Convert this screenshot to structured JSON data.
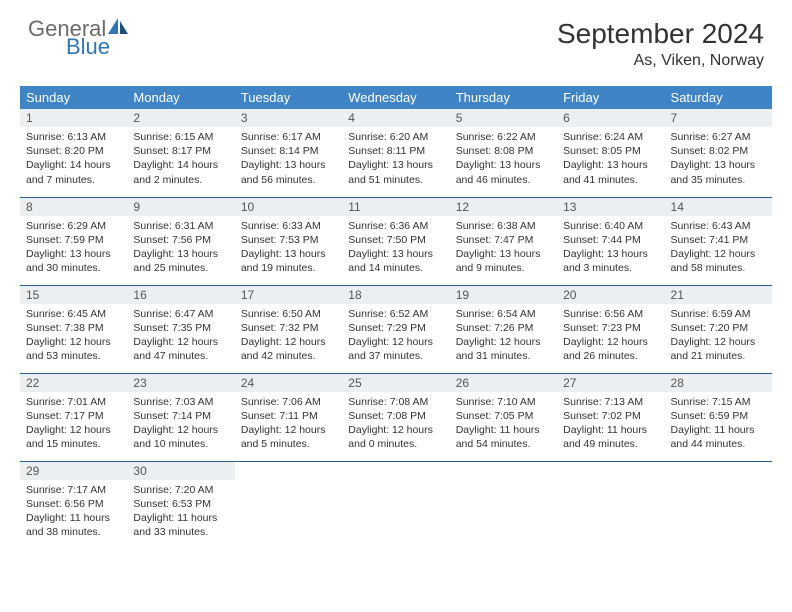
{
  "brand": {
    "line1": "General",
    "line2": "Blue"
  },
  "title": "September 2024",
  "location": "As, Viken, Norway",
  "colors": {
    "header_bg": "#3f85c6",
    "header_text": "#ffffff",
    "row_divider": "#2e5f8a",
    "daynum_bg": "#eceff1",
    "body_text": "#333333",
    "logo_gray": "#6b6b6b",
    "logo_blue": "#2e75b6",
    "page_bg": "#ffffff"
  },
  "typography": {
    "title_fontsize": 28,
    "location_fontsize": 16,
    "weekday_fontsize": 13,
    "daynum_fontsize": 12,
    "body_fontsize": 10.5
  },
  "weekdays": [
    "Sunday",
    "Monday",
    "Tuesday",
    "Wednesday",
    "Thursday",
    "Friday",
    "Saturday"
  ],
  "weeks": [
    [
      {
        "n": "1",
        "sr": "Sunrise: 6:13 AM",
        "ss": "Sunset: 8:20 PM",
        "d1": "Daylight: 14 hours",
        "d2": "and 7 minutes."
      },
      {
        "n": "2",
        "sr": "Sunrise: 6:15 AM",
        "ss": "Sunset: 8:17 PM",
        "d1": "Daylight: 14 hours",
        "d2": "and 2 minutes."
      },
      {
        "n": "3",
        "sr": "Sunrise: 6:17 AM",
        "ss": "Sunset: 8:14 PM",
        "d1": "Daylight: 13 hours",
        "d2": "and 56 minutes."
      },
      {
        "n": "4",
        "sr": "Sunrise: 6:20 AM",
        "ss": "Sunset: 8:11 PM",
        "d1": "Daylight: 13 hours",
        "d2": "and 51 minutes."
      },
      {
        "n": "5",
        "sr": "Sunrise: 6:22 AM",
        "ss": "Sunset: 8:08 PM",
        "d1": "Daylight: 13 hours",
        "d2": "and 46 minutes."
      },
      {
        "n": "6",
        "sr": "Sunrise: 6:24 AM",
        "ss": "Sunset: 8:05 PM",
        "d1": "Daylight: 13 hours",
        "d2": "and 41 minutes."
      },
      {
        "n": "7",
        "sr": "Sunrise: 6:27 AM",
        "ss": "Sunset: 8:02 PM",
        "d1": "Daylight: 13 hours",
        "d2": "and 35 minutes."
      }
    ],
    [
      {
        "n": "8",
        "sr": "Sunrise: 6:29 AM",
        "ss": "Sunset: 7:59 PM",
        "d1": "Daylight: 13 hours",
        "d2": "and 30 minutes."
      },
      {
        "n": "9",
        "sr": "Sunrise: 6:31 AM",
        "ss": "Sunset: 7:56 PM",
        "d1": "Daylight: 13 hours",
        "d2": "and 25 minutes."
      },
      {
        "n": "10",
        "sr": "Sunrise: 6:33 AM",
        "ss": "Sunset: 7:53 PM",
        "d1": "Daylight: 13 hours",
        "d2": "and 19 minutes."
      },
      {
        "n": "11",
        "sr": "Sunrise: 6:36 AM",
        "ss": "Sunset: 7:50 PM",
        "d1": "Daylight: 13 hours",
        "d2": "and 14 minutes."
      },
      {
        "n": "12",
        "sr": "Sunrise: 6:38 AM",
        "ss": "Sunset: 7:47 PM",
        "d1": "Daylight: 13 hours",
        "d2": "and 9 minutes."
      },
      {
        "n": "13",
        "sr": "Sunrise: 6:40 AM",
        "ss": "Sunset: 7:44 PM",
        "d1": "Daylight: 13 hours",
        "d2": "and 3 minutes."
      },
      {
        "n": "14",
        "sr": "Sunrise: 6:43 AM",
        "ss": "Sunset: 7:41 PM",
        "d1": "Daylight: 12 hours",
        "d2": "and 58 minutes."
      }
    ],
    [
      {
        "n": "15",
        "sr": "Sunrise: 6:45 AM",
        "ss": "Sunset: 7:38 PM",
        "d1": "Daylight: 12 hours",
        "d2": "and 53 minutes."
      },
      {
        "n": "16",
        "sr": "Sunrise: 6:47 AM",
        "ss": "Sunset: 7:35 PM",
        "d1": "Daylight: 12 hours",
        "d2": "and 47 minutes."
      },
      {
        "n": "17",
        "sr": "Sunrise: 6:50 AM",
        "ss": "Sunset: 7:32 PM",
        "d1": "Daylight: 12 hours",
        "d2": "and 42 minutes."
      },
      {
        "n": "18",
        "sr": "Sunrise: 6:52 AM",
        "ss": "Sunset: 7:29 PM",
        "d1": "Daylight: 12 hours",
        "d2": "and 37 minutes."
      },
      {
        "n": "19",
        "sr": "Sunrise: 6:54 AM",
        "ss": "Sunset: 7:26 PM",
        "d1": "Daylight: 12 hours",
        "d2": "and 31 minutes."
      },
      {
        "n": "20",
        "sr": "Sunrise: 6:56 AM",
        "ss": "Sunset: 7:23 PM",
        "d1": "Daylight: 12 hours",
        "d2": "and 26 minutes."
      },
      {
        "n": "21",
        "sr": "Sunrise: 6:59 AM",
        "ss": "Sunset: 7:20 PM",
        "d1": "Daylight: 12 hours",
        "d2": "and 21 minutes."
      }
    ],
    [
      {
        "n": "22",
        "sr": "Sunrise: 7:01 AM",
        "ss": "Sunset: 7:17 PM",
        "d1": "Daylight: 12 hours",
        "d2": "and 15 minutes."
      },
      {
        "n": "23",
        "sr": "Sunrise: 7:03 AM",
        "ss": "Sunset: 7:14 PM",
        "d1": "Daylight: 12 hours",
        "d2": "and 10 minutes."
      },
      {
        "n": "24",
        "sr": "Sunrise: 7:06 AM",
        "ss": "Sunset: 7:11 PM",
        "d1": "Daylight: 12 hours",
        "d2": "and 5 minutes."
      },
      {
        "n": "25",
        "sr": "Sunrise: 7:08 AM",
        "ss": "Sunset: 7:08 PM",
        "d1": "Daylight: 12 hours",
        "d2": "and 0 minutes."
      },
      {
        "n": "26",
        "sr": "Sunrise: 7:10 AM",
        "ss": "Sunset: 7:05 PM",
        "d1": "Daylight: 11 hours",
        "d2": "and 54 minutes."
      },
      {
        "n": "27",
        "sr": "Sunrise: 7:13 AM",
        "ss": "Sunset: 7:02 PM",
        "d1": "Daylight: 11 hours",
        "d2": "and 49 minutes."
      },
      {
        "n": "28",
        "sr": "Sunrise: 7:15 AM",
        "ss": "Sunset: 6:59 PM",
        "d1": "Daylight: 11 hours",
        "d2": "and 44 minutes."
      }
    ],
    [
      {
        "n": "29",
        "sr": "Sunrise: 7:17 AM",
        "ss": "Sunset: 6:56 PM",
        "d1": "Daylight: 11 hours",
        "d2": "and 38 minutes."
      },
      {
        "n": "30",
        "sr": "Sunrise: 7:20 AM",
        "ss": "Sunset: 6:53 PM",
        "d1": "Daylight: 11 hours",
        "d2": "and 33 minutes."
      },
      {
        "empty": true
      },
      {
        "empty": true
      },
      {
        "empty": true
      },
      {
        "empty": true
      },
      {
        "empty": true
      }
    ]
  ]
}
